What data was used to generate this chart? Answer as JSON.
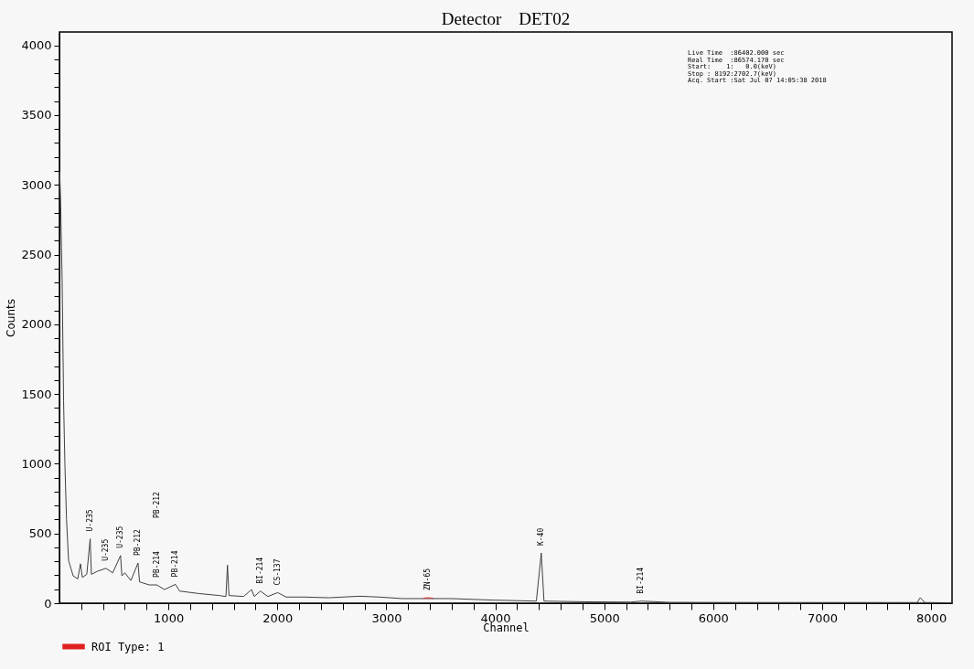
{
  "chart_data": {
    "type": "line",
    "title": "Detector    DET02",
    "xlabel": "Channel",
    "ylabel": "Counts",
    "xlim": [
      0,
      8192
    ],
    "ylim": [
      0,
      4096
    ],
    "xticks": [
      {
        "value": 200,
        "label": null
      },
      {
        "value": 400,
        "label": null
      },
      {
        "value": 600,
        "label": null
      },
      {
        "value": 800,
        "label": null
      },
      1000,
      {
        "value": 1200,
        "label": null
      },
      {
        "value": 1400,
        "label": null
      },
      {
        "value": 1600,
        "label": null
      },
      {
        "value": 1800,
        "label": null
      },
      2000,
      {
        "value": 2200,
        "label": null
      },
      {
        "value": 2400,
        "label": null
      },
      {
        "value": 2600,
        "label": null
      },
      {
        "value": 2800,
        "label": null
      },
      3000,
      {
        "value": 3200,
        "label": null
      },
      {
        "value": 3400,
        "label": null
      },
      {
        "value": 3600,
        "label": null
      },
      {
        "value": 3800,
        "label": null
      },
      4000,
      {
        "value": 4200,
        "label": null
      },
      {
        "value": 4400,
        "label": null
      },
      {
        "value": 4600,
        "label": null
      },
      {
        "value": 4800,
        "label": null
      },
      5000,
      {
        "value": 5200,
        "label": null
      },
      {
        "value": 5400,
        "label": null
      },
      {
        "value": 5600,
        "label": null
      },
      {
        "value": 5800,
        "label": null
      },
      6000,
      {
        "value": 6200,
        "label": null
      },
      {
        "value": 6400,
        "label": null
      },
      {
        "value": 6600,
        "label": null
      },
      {
        "value": 6800,
        "label": null
      },
      7000,
      {
        "value": 7200,
        "label": null
      },
      {
        "value": 7400,
        "label": null
      },
      {
        "value": 7600,
        "label": null
      },
      {
        "value": 7800,
        "label": null
      },
      8000
    ],
    "yticks": [
      0,
      {
        "value": 100,
        "label": null
      },
      {
        "value": 200,
        "label": null
      },
      {
        "value": 300,
        "label": null
      },
      {
        "value": 400,
        "label": null
      },
      500,
      {
        "value": 600,
        "label": null
      },
      {
        "value": 700,
        "label": null
      },
      {
        "value": 800,
        "label": null
      },
      {
        "value": 900,
        "label": null
      },
      1000,
      {
        "value": 1100,
        "label": null
      },
      {
        "value": 1200,
        "label": null
      },
      {
        "value": 1300,
        "label": null
      },
      {
        "value": 1400,
        "label": null
      },
      1500,
      {
        "value": 1600,
        "label": null
      },
      {
        "value": 1700,
        "label": null
      },
      {
        "value": 1800,
        "label": null
      },
      {
        "value": 1900,
        "label": null
      },
      2000,
      {
        "value": 2100,
        "label": null
      },
      {
        "value": 2200,
        "label": null
      },
      {
        "value": 2300,
        "label": null
      },
      {
        "value": 2400,
        "label": null
      },
      2500,
      {
        "value": 2600,
        "label": null
      },
      {
        "value": 2700,
        "label": null
      },
      {
        "value": 2800,
        "label": null
      },
      {
        "value": 2900,
        "label": null
      },
      3000,
      {
        "value": 3100,
        "label": null
      },
      {
        "value": 3200,
        "label": null
      },
      {
        "value": 3300,
        "label": null
      },
      {
        "value": 3400,
        "label": null
      },
      3500,
      {
        "value": 3600,
        "label": null
      },
      {
        "value": 3700,
        "label": null
      },
      {
        "value": 3800,
        "label": null
      },
      {
        "value": 3900,
        "label": null
      },
      4000
    ],
    "grid": false,
    "legend": "bottom left",
    "marker": "none",
    "line_style": "solid",
    "series": [
      {
        "color": "#404040",
        "x": [
          2,
          10,
          25,
          38,
          50,
          65,
          84,
          126,
          168,
          193,
          210,
          251,
          282,
          293,
          349,
          427,
          489,
          561,
          573,
          600,
          656,
          721,
          735,
          824,
          894,
          964,
          1064,
          1103,
          1271,
          1466,
          1528,
          1542,
          1556,
          1690,
          1763,
          1788,
          1844,
          1913,
          2003,
          2081,
          2249,
          2472,
          2754,
          2936,
          3146,
          3594,
          3985,
          4377,
          4422,
          4447,
          4825,
          5243,
          5341,
          5600,
          6500,
          7500,
          7872,
          7900,
          7942,
          8192
        ],
        "values": [
          3090,
          2900,
          2300,
          1450,
          1000,
          600,
          305,
          196,
          174,
          283,
          185,
          207,
          462,
          207,
          229,
          250,
          218,
          342,
          196,
          218,
          163,
          288,
          153,
          131,
          131,
          98,
          135,
          87,
          70,
          55,
          48,
          273,
          55,
          48,
          98,
          48,
          87,
          48,
          76,
          44,
          44,
          39,
          50,
          44,
          33,
          33,
          22,
          15,
          360,
          15,
          10,
          8,
          15,
          6,
          5,
          5,
          5,
          40,
          5,
          3
        ]
      },
      {
        "name": "ROI Type: 1",
        "color": "#e02020",
        "x": [
          3340,
          3360,
          3384,
          3410,
          3430
        ],
        "values": [
          35,
          38,
          39,
          37,
          34
        ]
      }
    ],
    "annotations": [
      "Live Time  :86402.000 sec",
      "Real Time  :86574.170 sec",
      "Start:    1:   0.0(keV)",
      "Stop : 8192:2702.7(keV)",
      "Acq. Start :Sat Jul 07 14:05:38 2018",
      {
        "text": "U-235",
        "x": 282,
        "y": 462
      },
      {
        "text": "U-235",
        "x": 427,
        "y": 250
      },
      {
        "text": "U-235",
        "x": 561,
        "y": 342
      },
      {
        "text": "PB-212",
        "x": 721,
        "y": 288
      },
      {
        "text": "PB-214",
        "x": 894,
        "y": 131
      },
      "PB-212",
      {
        "text": "PB-214",
        "x": 1064,
        "y": 135
      },
      {
        "text": "BI-214",
        "x": 1844,
        "y": 87
      },
      {
        "text": "CS-137",
        "x": 2003,
        "y": 76
      },
      {
        "text": "ZN-65",
        "x": 3384,
        "y": 39
      },
      {
        "text": "K-40",
        "x": 4422,
        "y": 360
      },
      {
        "text": "BI-214",
        "x": 5341,
        "y": 15
      }
    ]
  }
}
